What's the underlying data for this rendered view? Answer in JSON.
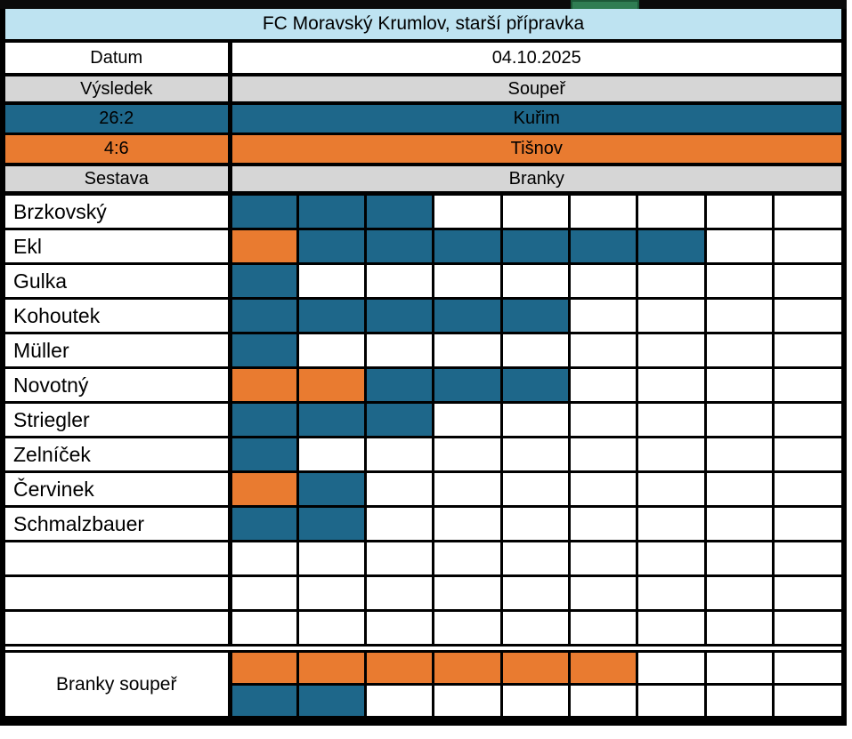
{
  "title": "FC Moravský Krumlov, starší přípravka",
  "colors": {
    "teal": "#1E678A",
    "orange": "#E97B30",
    "header_gray": "#D6D6D6",
    "title_blue": "#BEE3F1",
    "green_tab": "#2F7D53"
  },
  "info_rows": {
    "datum_label": "Datum",
    "datum_value": "04.10.2025",
    "vysledek_label": "Výsledek",
    "souper_label": "Soupeř",
    "sestava_label": "Sestava",
    "branky_label": "Branky"
  },
  "matches": [
    {
      "score": "26:2",
      "opponent": "Kuřim",
      "color": "teal"
    },
    {
      "score": "4:6",
      "opponent": "Tišnov",
      "color": "orange"
    }
  ],
  "goal_columns": 9,
  "players": [
    {
      "name": "Brzkovský",
      "goals": [
        "teal",
        "teal",
        "teal"
      ]
    },
    {
      "name": "Ekl",
      "goals": [
        "orange",
        "teal",
        "teal",
        "teal",
        "teal",
        "teal",
        "teal"
      ]
    },
    {
      "name": "Gulka",
      "goals": [
        "teal"
      ]
    },
    {
      "name": "Kohoutek",
      "goals": [
        "teal",
        "teal",
        "teal",
        "teal",
        "teal"
      ]
    },
    {
      "name": "Müller",
      "goals": [
        "teal"
      ]
    },
    {
      "name": "Novotný",
      "goals": [
        "orange",
        "orange",
        "teal",
        "teal",
        "teal"
      ]
    },
    {
      "name": "Striegler",
      "goals": [
        "teal",
        "teal",
        "teal"
      ]
    },
    {
      "name": "Zelníček",
      "goals": [
        "teal"
      ]
    },
    {
      "name": "Červinek",
      "goals": [
        "orange",
        "teal"
      ]
    },
    {
      "name": "Schmalzbauer",
      "goals": [
        "teal",
        "teal"
      ]
    }
  ],
  "empty_player_rows": 3,
  "opponent_goals": {
    "label": "Branky soupeř",
    "rows": [
      [
        "orange",
        "orange",
        "orange",
        "orange",
        "orange",
        "orange"
      ],
      [
        "teal",
        "teal"
      ]
    ]
  }
}
